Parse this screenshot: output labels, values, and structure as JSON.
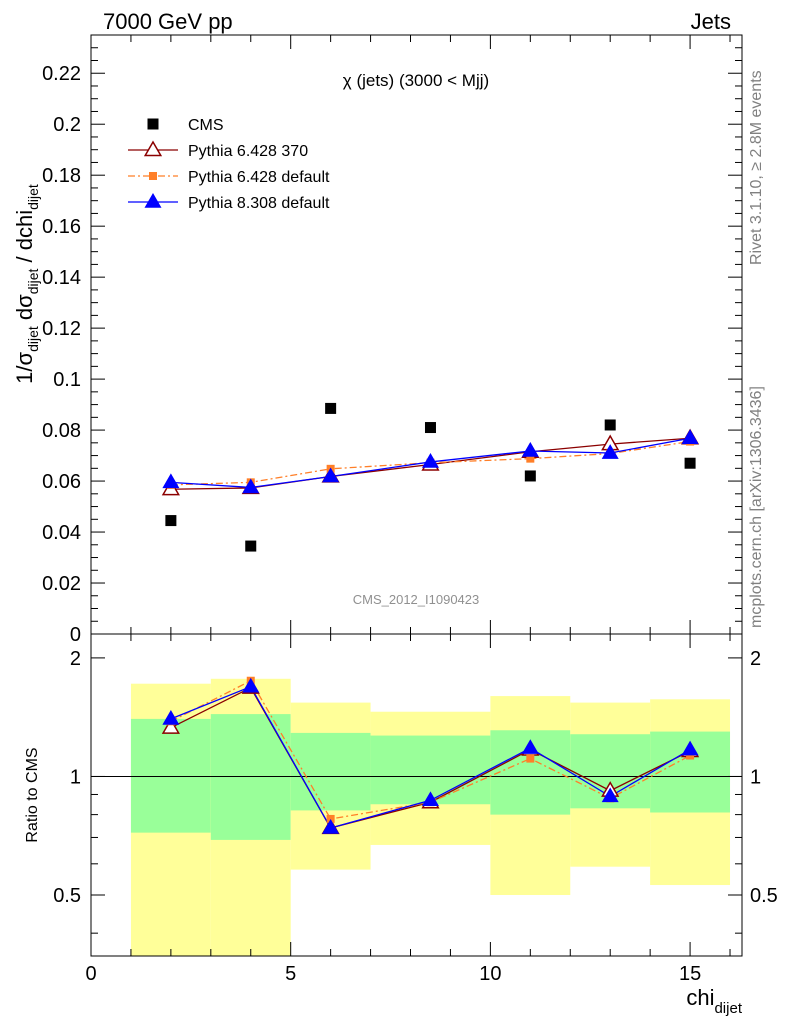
{
  "header": {
    "beam": "7000 GeV pp",
    "category": "Jets",
    "rivet_label": "Rivet 3.1.10, ≥ 2.8M events",
    "mcplots_label": "mcplots.cern.ch [arXiv:1306.3436]",
    "analysis_id": "CMS_2012_I1090423"
  },
  "colors": {
    "cms": "#000000",
    "pythia6_370": "#8b0000",
    "pythia6_default": "#ff7f28",
    "pythia8_default": "#0000ff",
    "band_inner": "#99ff99",
    "band_outer": "#ffff99"
  },
  "chart_data": [
    {
      "type": "scatter",
      "panel": "main",
      "title": "χ (jets) (3000 < Mjj)",
      "ylabel_parts": [
        "1/σ",
        "dijet",
        " dσ",
        "dijet",
        " / dchi",
        "dijet"
      ],
      "xlim": [
        0,
        16.3
      ],
      "ylim": [
        0,
        0.235
      ],
      "yticks": [
        0,
        0.02,
        0.04,
        0.06,
        0.08,
        0.1,
        0.12,
        0.14,
        0.16,
        0.18,
        0.2,
        0.22
      ],
      "ytick_labels": [
        "0",
        "0.02",
        "0.04",
        "0.06",
        "0.08",
        "0.1",
        "0.12",
        "0.14",
        "0.16",
        "0.18",
        "0.2",
        "0.22"
      ],
      "legend_position": "top-left",
      "x": [
        2,
        4,
        6,
        8.5,
        11,
        13,
        15
      ],
      "series": [
        {
          "name": "CMS",
          "marker": "square",
          "style": "points",
          "values": [
            0.0445,
            0.0345,
            0.0885,
            0.081,
            0.062,
            0.082,
            0.067
          ]
        },
        {
          "name": "Pythia 6.428 370",
          "marker": "open-triangle",
          "style": "solid",
          "values": [
            0.0568,
            0.0573,
            0.0618,
            0.0665,
            0.0715,
            0.0745,
            0.0768
          ]
        },
        {
          "name": "Pythia 6.428 default",
          "marker": "square-small",
          "style": "dashdot",
          "values": [
            0.0585,
            0.0595,
            0.0648,
            0.0672,
            0.0688,
            0.0708,
            0.0755
          ]
        },
        {
          "name": "Pythia 8.308 default",
          "marker": "filled-triangle",
          "style": "solid",
          "values": [
            0.0595,
            0.0575,
            0.0618,
            0.0675,
            0.0718,
            0.071,
            0.0768
          ]
        }
      ]
    },
    {
      "type": "line",
      "panel": "ratio",
      "ylabel": "Ratio to CMS",
      "xlabel_main": "chi",
      "xlabel_sub": "dijet",
      "xlim": [
        0,
        16.3
      ],
      "ylim": [
        0.35,
        2.3
      ],
      "yticks": [
        0.5,
        1,
        2
      ],
      "ytick_labels": [
        "0.5",
        "1",
        "2"
      ],
      "xticks": [
        0,
        5,
        10,
        15
      ],
      "xtick_labels": [
        "0",
        "5",
        "10",
        "15"
      ],
      "x": [
        2,
        4,
        6,
        8.5,
        11,
        13,
        15
      ],
      "bands": {
        "edges": [
          1,
          3,
          5,
          7,
          10,
          12,
          14,
          16
        ],
        "inner_low": [
          0.72,
          0.69,
          0.82,
          0.85,
          0.8,
          0.83,
          0.81
        ],
        "inner_high": [
          1.4,
          1.44,
          1.29,
          1.27,
          1.31,
          1.28,
          1.3
        ],
        "outer_low": [
          0.35,
          0.35,
          0.58,
          0.67,
          0.5,
          0.59,
          0.53
        ],
        "outer_high": [
          1.72,
          1.77,
          1.54,
          1.46,
          1.6,
          1.54,
          1.57
        ]
      },
      "series": [
        {
          "name": "Pythia 6.428 370",
          "values": [
            1.33,
            1.68,
            0.74,
            0.86,
            1.17,
            0.92,
            1.16
          ]
        },
        {
          "name": "Pythia 6.428 default",
          "values": [
            1.38,
            1.75,
            0.78,
            0.86,
            1.11,
            0.88,
            1.13
          ]
        },
        {
          "name": "Pythia 8.308 default",
          "values": [
            1.4,
            1.69,
            0.74,
            0.87,
            1.18,
            0.89,
            1.17
          ]
        }
      ]
    }
  ]
}
